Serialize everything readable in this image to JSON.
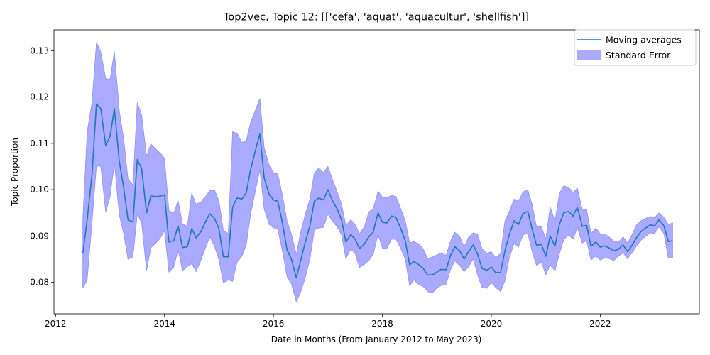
{
  "chart_data": {
    "type": "line",
    "title": "Top2vec, Topic 12: [['cefa', 'aquat', 'aquacultur', 'shellfish']]",
    "xlabel": "Date in Months (From January 2012 to May 2023)",
    "ylabel": "Topic Proportion",
    "xlim": [
      2011.97,
      2023.82
    ],
    "ylim": [
      0.0732,
      0.1345
    ],
    "xticks": [
      2012,
      2014,
      2016,
      2018,
      2020,
      2022
    ],
    "yticks": [
      0.08,
      0.09,
      0.1,
      0.11,
      0.12,
      0.13
    ],
    "ytick_labels": [
      "0.08",
      "0.09",
      "0.10",
      "0.11",
      "0.12",
      "0.13"
    ],
    "legend": {
      "position": "top-right",
      "line_label": "Moving averages",
      "band_label": "Standard Error"
    },
    "colors": {
      "line": "#1f77b4",
      "band": "#aaaaff",
      "band_edge": "#8f8fff"
    },
    "grid": false,
    "series": [
      {
        "name": "Moving averages",
        "x": [
          2012.5,
          2012.58,
          2012.67,
          2012.75,
          2012.83,
          2012.92,
          2013.0,
          2013.08,
          2013.17,
          2013.25,
          2013.33,
          2013.42,
          2013.5,
          2013.58,
          2013.67,
          2013.75,
          2013.83,
          2013.92,
          2014.0,
          2014.08,
          2014.17,
          2014.25,
          2014.33,
          2014.42,
          2014.5,
          2014.58,
          2014.67,
          2014.75,
          2014.83,
          2014.92,
          2015.0,
          2015.08,
          2015.17,
          2015.25,
          2015.33,
          2015.42,
          2015.5,
          2015.58,
          2015.67,
          2015.75,
          2015.83,
          2015.92,
          2016.0,
          2016.08,
          2016.17,
          2016.25,
          2016.33,
          2016.42,
          2016.5,
          2016.58,
          2016.67,
          2016.75,
          2016.83,
          2016.92,
          2017.0,
          2017.08,
          2017.17,
          2017.25,
          2017.33,
          2017.42,
          2017.5,
          2017.58,
          2017.67,
          2017.75,
          2017.83,
          2017.92,
          2018.0,
          2018.08,
          2018.17,
          2018.25,
          2018.33,
          2018.42,
          2018.5,
          2018.58,
          2018.67,
          2018.75,
          2018.83,
          2018.92,
          2019.0,
          2019.08,
          2019.17,
          2019.25,
          2019.33,
          2019.42,
          2019.5,
          2019.58,
          2019.67,
          2019.75,
          2019.83,
          2019.92,
          2020.0,
          2020.08,
          2020.17,
          2020.25,
          2020.33,
          2020.42,
          2020.5,
          2020.58,
          2020.67,
          2020.75,
          2020.83,
          2020.92,
          2021.0,
          2021.08,
          2021.17,
          2021.25,
          2021.33,
          2021.42,
          2021.5,
          2021.58,
          2021.67,
          2021.75,
          2021.83,
          2021.92,
          2022.0,
          2022.08,
          2022.17,
          2022.25,
          2022.33,
          2022.42,
          2022.5,
          2022.58,
          2022.67,
          2022.75,
          2022.83,
          2022.92,
          2023.0,
          2023.08,
          2023.17,
          2023.25,
          2023.33
        ],
        "y": [
          0.0862,
          0.0935,
          0.1035,
          0.1185,
          0.1175,
          0.1095,
          0.1115,
          0.1175,
          0.106,
          0.1005,
          0.0935,
          0.093,
          0.1065,
          0.1045,
          0.095,
          0.0987,
          0.0985,
          0.0986,
          0.0989,
          0.0887,
          0.089,
          0.0922,
          0.0875,
          0.0877,
          0.0916,
          0.0896,
          0.091,
          0.093,
          0.0948,
          0.0938,
          0.0915,
          0.0855,
          0.0855,
          0.0962,
          0.0982,
          0.098,
          0.0993,
          0.1043,
          0.1085,
          0.112,
          0.1025,
          0.099,
          0.0978,
          0.0975,
          0.0925,
          0.087,
          0.085,
          0.081,
          0.0847,
          0.0885,
          0.0922,
          0.0975,
          0.0982,
          0.0978,
          0.1,
          0.0977,
          0.0958,
          0.0935,
          0.0887,
          0.0903,
          0.0893,
          0.0873,
          0.0883,
          0.0898,
          0.0908,
          0.095,
          0.093,
          0.0928,
          0.0943,
          0.094,
          0.0918,
          0.089,
          0.0838,
          0.0845,
          0.0838,
          0.083,
          0.0816,
          0.0816,
          0.0822,
          0.0828,
          0.0827,
          0.0858,
          0.0877,
          0.0868,
          0.085,
          0.0866,
          0.0881,
          0.086,
          0.083,
          0.0826,
          0.0833,
          0.0821,
          0.0821,
          0.0868,
          0.0903,
          0.0933,
          0.0925,
          0.0948,
          0.0953,
          0.0915,
          0.088,
          0.0882,
          0.0856,
          0.09,
          0.0878,
          0.0925,
          0.095,
          0.0953,
          0.0943,
          0.0962,
          0.0921,
          0.0923,
          0.0878,
          0.0887,
          0.0876,
          0.0879,
          0.0874,
          0.0868,
          0.0871,
          0.0881,
          0.0866,
          0.0879,
          0.0897,
          0.091,
          0.0917,
          0.0924,
          0.0922,
          0.0935,
          0.0922,
          0.0888,
          0.089
        ]
      },
      {
        "name": "Standard Error",
        "upper": [
          0.0935,
          0.1125,
          0.119,
          0.1318,
          0.1297,
          0.124,
          0.1238,
          0.1298,
          0.117,
          0.111,
          0.1023,
          0.101,
          0.1188,
          0.1162,
          0.1072,
          0.1099,
          0.1089,
          0.1079,
          0.1068,
          0.0955,
          0.095,
          0.0976,
          0.0926,
          0.0921,
          0.0993,
          0.0968,
          0.0974,
          0.0985,
          0.0998,
          0.0999,
          0.0975,
          0.0912,
          0.0905,
          0.1125,
          0.1122,
          0.1102,
          0.1105,
          0.1145,
          0.1172,
          0.1197,
          0.109,
          0.1053,
          0.1037,
          0.1034,
          0.0985,
          0.0932,
          0.0904,
          0.086,
          0.0908,
          0.0945,
          0.098,
          0.1035,
          0.1047,
          0.1037,
          0.105,
          0.1023,
          0.0995,
          0.0969,
          0.0923,
          0.0935,
          0.0925,
          0.0905,
          0.092,
          0.0952,
          0.0958,
          0.0997,
          0.0984,
          0.0982,
          0.0988,
          0.0985,
          0.0961,
          0.0933,
          0.0885,
          0.0888,
          0.0883,
          0.0872,
          0.0851,
          0.0855,
          0.0859,
          0.0863,
          0.0858,
          0.0889,
          0.0908,
          0.0899,
          0.0877,
          0.0897,
          0.0907,
          0.0903,
          0.0873,
          0.0863,
          0.0866,
          0.0853,
          0.0862,
          0.0932,
          0.0953,
          0.098,
          0.0975,
          0.0995,
          0.1,
          0.0968,
          0.092,
          0.092,
          0.0893,
          0.0963,
          0.0932,
          0.0992,
          0.1008,
          0.1005,
          0.0994,
          0.1003,
          0.0957,
          0.0957,
          0.0905,
          0.0917,
          0.0904,
          0.0905,
          0.0897,
          0.0889,
          0.0886,
          0.0898,
          0.0885,
          0.0902,
          0.0925,
          0.0933,
          0.0938,
          0.0942,
          0.094,
          0.095,
          0.094,
          0.0925,
          0.0928
        ],
        "lower": [
          0.0788,
          0.0805,
          0.0932,
          0.1052,
          0.105,
          0.0952,
          0.0985,
          0.1058,
          0.0945,
          0.0905,
          0.085,
          0.0855,
          0.0948,
          0.0928,
          0.0825,
          0.0875,
          0.0883,
          0.0895,
          0.0912,
          0.0822,
          0.0833,
          0.087,
          0.0825,
          0.0834,
          0.084,
          0.0823,
          0.0848,
          0.0874,
          0.0898,
          0.0877,
          0.0848,
          0.0799,
          0.0805,
          0.0802,
          0.0843,
          0.0856,
          0.088,
          0.0947,
          0.0998,
          0.1043,
          0.0958,
          0.0925,
          0.0918,
          0.0914,
          0.0865,
          0.0812,
          0.0797,
          0.0758,
          0.0779,
          0.0808,
          0.085,
          0.0913,
          0.0917,
          0.0919,
          0.0948,
          0.0932,
          0.092,
          0.0902,
          0.0851,
          0.0872,
          0.0862,
          0.0832,
          0.0839,
          0.0847,
          0.086,
          0.0903,
          0.0874,
          0.0873,
          0.0893,
          0.0893,
          0.0875,
          0.085,
          0.0793,
          0.0805,
          0.0795,
          0.0791,
          0.078,
          0.0777,
          0.0788,
          0.0793,
          0.0796,
          0.0827,
          0.0846,
          0.0836,
          0.0823,
          0.0833,
          0.0851,
          0.0815,
          0.0789,
          0.0787,
          0.0799,
          0.0789,
          0.078,
          0.0803,
          0.0853,
          0.0884,
          0.0877,
          0.0902,
          0.0906,
          0.0866,
          0.0836,
          0.0844,
          0.0816,
          0.0837,
          0.0825,
          0.0862,
          0.0892,
          0.0902,
          0.0893,
          0.0918,
          0.0885,
          0.089,
          0.0848,
          0.0857,
          0.0848,
          0.0853,
          0.0851,
          0.0847,
          0.0856,
          0.0864,
          0.0851,
          0.0863,
          0.0879,
          0.0891,
          0.0899,
          0.0907,
          0.0905,
          0.092,
          0.0905,
          0.0852,
          0.0853
        ]
      }
    ]
  }
}
